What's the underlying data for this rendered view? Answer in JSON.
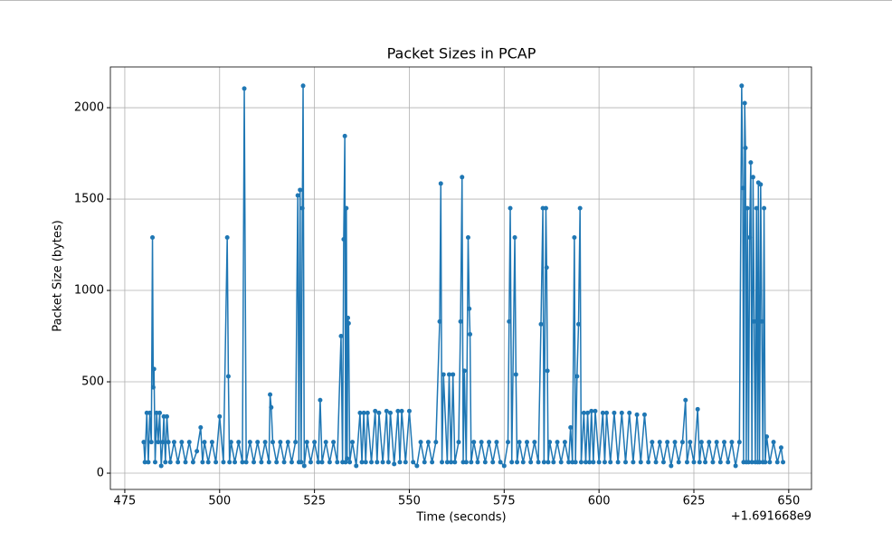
{
  "chart_data": {
    "type": "line",
    "title": "Packet Sizes in PCAP",
    "x_label": "Time (seconds)",
    "y_label": "Packet Size (bytes)",
    "x_offset_label": "+1.691668e9",
    "x": [
      480,
      480.3,
      480.8,
      481.2,
      481.6,
      482,
      482.3,
      482.5,
      482.7,
      483,
      483.4,
      483.8,
      484.2,
      484.6,
      485,
      485.3,
      485.7,
      486.1,
      486.5,
      487,
      488,
      489,
      490,
      491,
      492,
      493,
      494,
      495,
      495.5,
      496,
      497,
      498,
      499,
      500,
      501,
      502,
      502.3,
      502.6,
      503,
      504,
      505,
      506,
      506.5,
      507,
      508,
      509,
      510,
      511,
      512,
      513,
      513.3,
      513.6,
      514,
      515,
      516,
      517,
      518,
      519,
      520,
      520.6,
      520.9,
      521.2,
      521.5,
      521.8,
      522,
      522.3,
      523,
      524,
      525,
      526,
      526.5,
      527,
      528,
      529,
      530,
      531,
      532,
      532.4,
      532.7,
      533,
      533.2,
      533.4,
      533.6,
      533.8,
      534,
      534.3,
      535,
      536,
      537,
      537.5,
      538,
      538.5,
      539,
      540,
      541,
      541.5,
      542,
      543,
      544,
      544.5,
      545,
      546,
      547,
      547.5,
      548,
      549,
      550,
      551,
      552,
      553,
      554,
      555,
      556,
      557,
      558,
      558.3,
      558.6,
      559,
      560,
      560.5,
      561,
      561.5,
      562,
      563,
      563.5,
      563.9,
      564.2,
      564.5,
      565,
      565.5,
      565.8,
      566,
      566.3,
      567,
      568,
      569,
      570,
      571,
      572,
      573,
      574,
      575,
      576,
      576.3,
      576.6,
      577,
      577.8,
      578.1,
      578.4,
      579,
      580,
      581,
      582,
      583,
      584,
      584.7,
      585.2,
      585.5,
      586,
      586.2,
      586.4,
      586.6,
      587,
      588,
      589,
      590,
      591,
      592,
      592.5,
      593,
      593.5,
      593.8,
      594.2,
      594.6,
      595,
      595.3,
      596,
      596.5,
      597,
      597.5,
      598,
      598.5,
      599,
      600,
      601,
      601.5,
      602,
      603,
      604,
      605,
      606,
      607,
      608,
      609,
      610,
      611,
      612,
      613,
      614,
      615,
      616,
      617,
      618,
      619,
      620,
      621,
      622,
      622.8,
      623.2,
      624,
      625,
      626,
      626.5,
      627,
      628,
      629,
      630,
      631,
      632,
      633,
      634,
      635,
      636,
      637,
      637.6,
      637.9,
      638.1,
      638.4,
      638.6,
      638.8,
      639.1,
      639.4,
      639.7,
      640,
      640.3,
      640.6,
      640.9,
      641.2,
      641.5,
      641.8,
      642,
      642.3,
      642.6,
      642.9,
      643.2,
      643.5,
      643.8,
      644.2,
      645,
      646,
      647,
      648,
      648.5
    ],
    "series": [
      {
        "color": "#1f77b4",
        "values": [
          170,
          60,
          330,
          60,
          330,
          170,
          1290,
          470,
          570,
          60,
          330,
          170,
          330,
          40,
          170,
          310,
          60,
          310,
          170,
          60,
          170,
          60,
          170,
          60,
          170,
          60,
          120,
          250,
          60,
          170,
          60,
          170,
          60,
          310,
          60,
          1290,
          530,
          60,
          170,
          60,
          170,
          60,
          2105,
          60,
          170,
          60,
          170,
          60,
          170,
          60,
          430,
          360,
          170,
          60,
          170,
          60,
          170,
          60,
          170,
          1520,
          60,
          1550,
          60,
          1450,
          2120,
          40,
          170,
          60,
          170,
          60,
          400,
          60,
          170,
          60,
          170,
          60,
          750,
          60,
          1280,
          1845,
          60,
          1450,
          80,
          850,
          820,
          60,
          170,
          40,
          330,
          60,
          330,
          60,
          330,
          60,
          340,
          60,
          330,
          60,
          340,
          60,
          330,
          50,
          340,
          60,
          340,
          60,
          340,
          60,
          40,
          170,
          60,
          170,
          60,
          170,
          830,
          1585,
          60,
          540,
          60,
          540,
          60,
          540,
          60,
          170,
          830,
          1620,
          60,
          560,
          60,
          1290,
          900,
          760,
          60,
          170,
          60,
          170,
          60,
          170,
          60,
          170,
          60,
          40,
          170,
          830,
          1450,
          60,
          1290,
          540,
          60,
          170,
          60,
          170,
          60,
          170,
          60,
          815,
          1450,
          60,
          1450,
          1125,
          560,
          60,
          170,
          60,
          170,
          60,
          170,
          60,
          250,
          60,
          1290,
          60,
          530,
          815,
          1450,
          60,
          330,
          60,
          330,
          60,
          340,
          60,
          340,
          60,
          330,
          60,
          330,
          60,
          330,
          60,
          330,
          60,
          330,
          60,
          320,
          60,
          320,
          60,
          170,
          60,
          170,
          60,
          170,
          40,
          170,
          60,
          170,
          400,
          60,
          170,
          60,
          350,
          60,
          170,
          60,
          170,
          60,
          170,
          60,
          170,
          60,
          170,
          40,
          170,
          2120,
          1560,
          60,
          2025,
          1780,
          60,
          1450,
          60,
          1290,
          1700,
          60,
          1620,
          830,
          60,
          1450,
          60,
          1590,
          60,
          1580,
          830,
          60,
          1450,
          60,
          200,
          60,
          170,
          60,
          140,
          60
        ]
      }
    ],
    "xlim": [
      471.2,
      656
    ],
    "ylim": [
      -89,
      2223
    ],
    "xticks": [
      475,
      500,
      525,
      550,
      575,
      600,
      625,
      650
    ],
    "yticks": [
      0,
      500,
      1000,
      1500,
      2000
    ],
    "grid": true
  }
}
